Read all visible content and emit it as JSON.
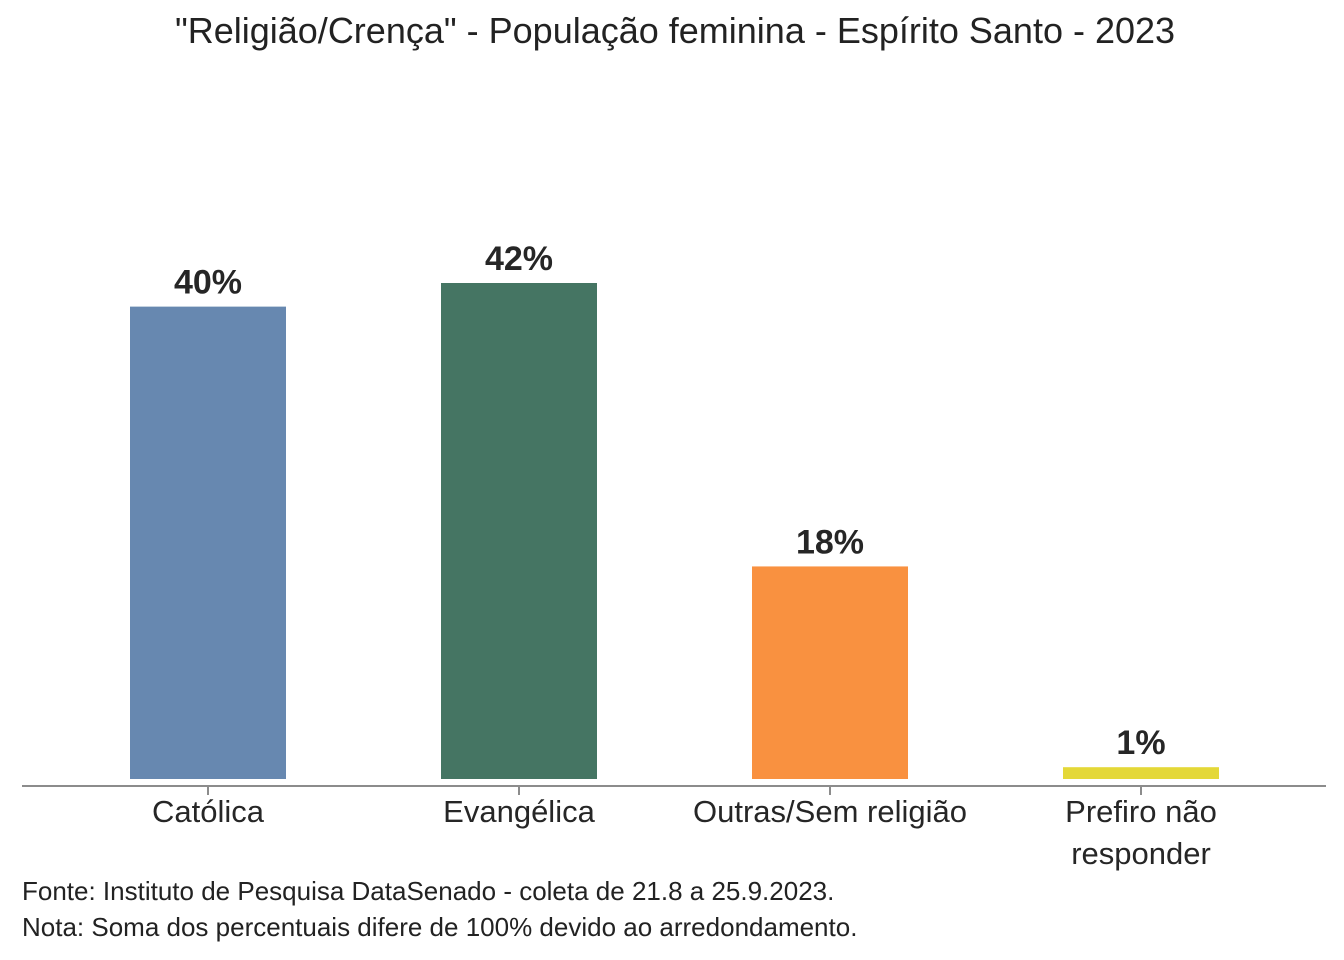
{
  "chart_data": {
    "type": "bar",
    "title": "\"Religião/Crença\" - População feminina - Espírito Santo - 2023",
    "categories": [
      "Católica",
      "Evangélica",
      "Outras/Sem religião",
      "Prefiro não responder"
    ],
    "values": [
      40,
      42,
      18,
      1
    ],
    "data_labels": [
      "40%",
      "42%",
      "18%",
      "1%"
    ],
    "unit": "%",
    "xlabel": "",
    "ylabel": "",
    "ylim": [
      0,
      42
    ],
    "grid": false,
    "legend": "none",
    "colors": [
      "#6788B0",
      "#457563",
      "#F99140",
      "#E4D838"
    ]
  },
  "footnotes": {
    "source": "Fonte: Instituto de Pesquisa DataSenado - coleta de 21.8 a 25.9.2023.",
    "note": "Nota: Soma dos percentuais difere de 100% devido ao arredondamento."
  }
}
